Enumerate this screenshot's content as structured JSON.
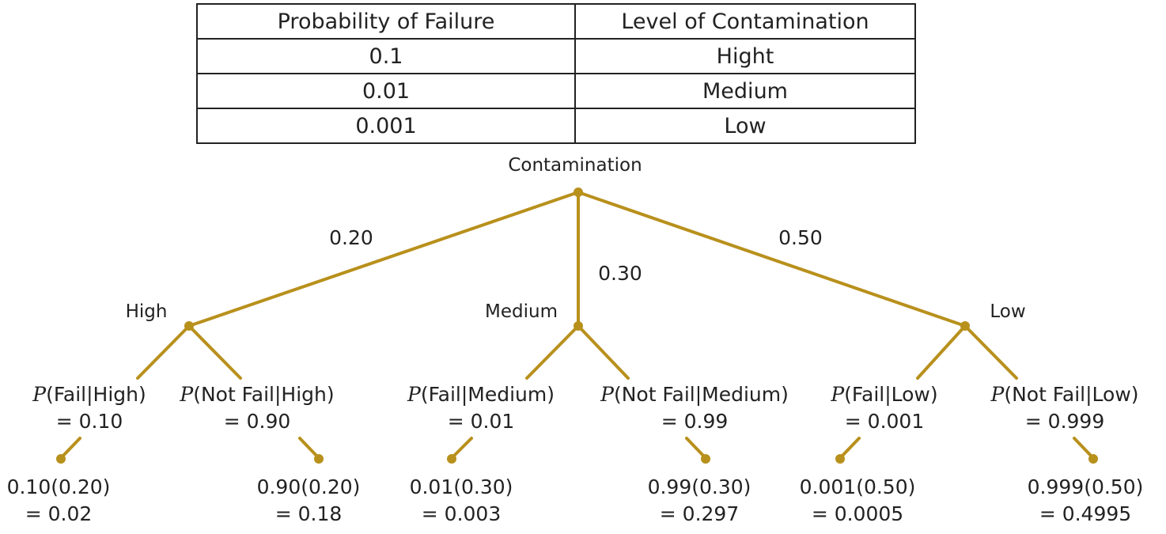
{
  "table": {
    "headers": [
      "Probability of Failure",
      "Level of Contamination"
    ],
    "rows": [
      {
        "prob": "0.1",
        "level": "Hight"
      },
      {
        "prob": "0.01",
        "level": "Medium"
      },
      {
        "prob": "0.001",
        "level": "Low"
      }
    ]
  },
  "tree": {
    "root": "Contamination",
    "colors": {
      "branch": "#b8901c",
      "text": "#222222"
    },
    "branches": [
      {
        "label": "High",
        "prob": "0.20",
        "fail": {
          "p": "P",
          "cond": "(Fail|High)",
          "value": "= 0.10",
          "result1": "0.10(0.20)",
          "result2": "= 0.02"
        },
        "notfail": {
          "p": "P",
          "cond": "(Not Fail|High)",
          "value": "= 0.90",
          "result1": "0.90(0.20)",
          "result2": "= 0.18"
        }
      },
      {
        "label": "Medium",
        "prob": "0.30",
        "fail": {
          "p": "P",
          "cond": "(Fail|Medium)",
          "value": "= 0.01",
          "result1": "0.01(0.30)",
          "result2": "= 0.003"
        },
        "notfail": {
          "p": "P",
          "cond": "(Not Fail|Medium)",
          "value": "= 0.99",
          "result1": "0.99(0.30)",
          "result2": "= 0.297"
        }
      },
      {
        "label": "Low",
        "prob": "0.50",
        "fail": {
          "p": "P",
          "cond": "(Fail|Low)",
          "value": "= 0.001",
          "result1": "0.001(0.50)",
          "result2": "= 0.0005"
        },
        "notfail": {
          "p": "P",
          "cond": "(Not Fail|Low)",
          "value": "= 0.999",
          "result1": "0.999(0.50)",
          "result2": "= 0.4995"
        }
      }
    ]
  }
}
